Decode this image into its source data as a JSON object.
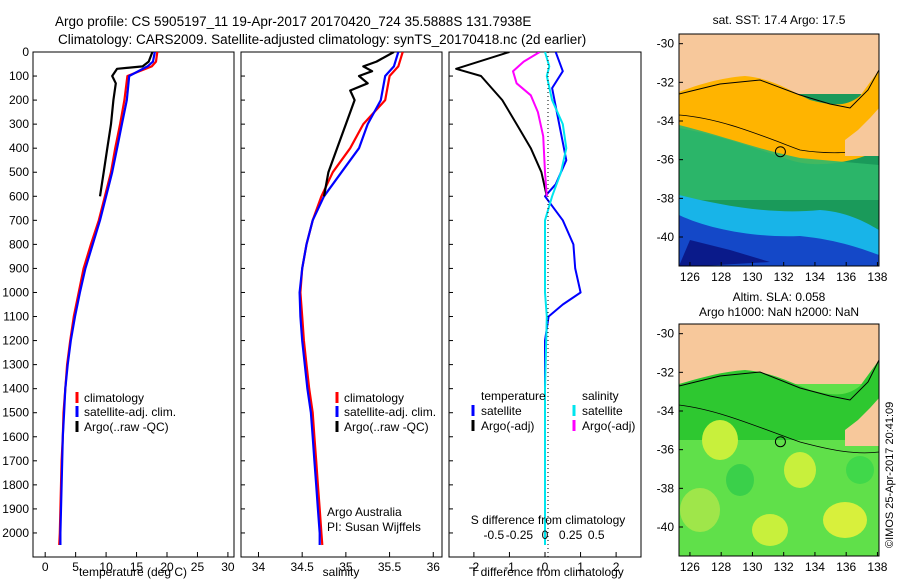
{
  "header": {
    "line1": "Argo profile: CS 5905197_11 19-Apr-2017 20170420_724 35.5888S 131.7938E",
    "line2": "Climatology: CARS2009. Satellite-adjusted climatology: synTS_20170418.nc (2d earlier)"
  },
  "chart_data": [
    {
      "type": "line",
      "id": "temperature",
      "xlabel": "temperature (deg C)",
      "xlim": [
        -2,
        31
      ],
      "ylim": [
        2100,
        0
      ],
      "xticks": [
        "0",
        "5",
        "10",
        "15",
        "20",
        "25",
        "30"
      ],
      "yticks": [
        "0",
        "100",
        "200",
        "300",
        "400",
        "500",
        "600",
        "700",
        "800",
        "900",
        "1000",
        "1100",
        "1200",
        "1300",
        "1400",
        "1500",
        "1600",
        "1700",
        "1800",
        "1900",
        "2000"
      ],
      "legend": [
        "climatology",
        "satellite-adj. clim.",
        "Argo(..raw -QC)"
      ],
      "series": [
        {
          "name": "climatology",
          "color": "#ff0000",
          "points": [
            [
              18.4,
              0
            ],
            [
              18.2,
              40
            ],
            [
              17.5,
              60
            ],
            [
              13.5,
              100
            ],
            [
              13.0,
              200
            ],
            [
              12.3,
              300
            ],
            [
              11.5,
              400
            ],
            [
              10.8,
              500
            ],
            [
              9.8,
              600
            ],
            [
              8.8,
              700
            ],
            [
              7.5,
              800
            ],
            [
              6.3,
              900
            ],
            [
              5.5,
              1000
            ],
            [
              4.7,
              1100
            ],
            [
              4.1,
              1200
            ],
            [
              3.6,
              1300
            ],
            [
              3.3,
              1400
            ],
            [
              3.0,
              1500
            ],
            [
              2.9,
              1600
            ],
            [
              2.7,
              1700
            ],
            [
              2.6,
              1800
            ],
            [
              2.5,
              1900
            ],
            [
              2.4,
              2000
            ],
            [
              2.3,
              2050
            ]
          ]
        },
        {
          "name": "satellite-adj. clim.",
          "color": "#0000ff",
          "points": [
            [
              18.0,
              0
            ],
            [
              17.7,
              40
            ],
            [
              16.8,
              60
            ],
            [
              13.8,
              100
            ],
            [
              13.4,
              200
            ],
            [
              12.6,
              300
            ],
            [
              11.8,
              400
            ],
            [
              11.0,
              500
            ],
            [
              10.0,
              600
            ],
            [
              9.0,
              700
            ],
            [
              7.8,
              800
            ],
            [
              6.6,
              900
            ],
            [
              5.7,
              1000
            ],
            [
              4.9,
              1100
            ],
            [
              4.2,
              1200
            ],
            [
              3.7,
              1300
            ],
            [
              3.3,
              1400
            ],
            [
              3.1,
              1500
            ],
            [
              2.9,
              1600
            ],
            [
              2.8,
              1700
            ],
            [
              2.7,
              1800
            ],
            [
              2.6,
              1900
            ],
            [
              2.5,
              2000
            ],
            [
              2.5,
              2050
            ]
          ]
        },
        {
          "name": "Argo(..raw -QC)",
          "color": "#000000",
          "points": [
            [
              17.6,
              0
            ],
            [
              17.0,
              40
            ],
            [
              16.0,
              60
            ],
            [
              11.8,
              70
            ],
            [
              11.0,
              100
            ],
            [
              11.6,
              130
            ],
            [
              11.2,
              200
            ],
            [
              10.8,
              300
            ],
            [
              10.2,
              400
            ],
            [
              9.6,
              500
            ],
            [
              9.0,
              600
            ]
          ]
        }
      ]
    },
    {
      "type": "line",
      "id": "salinity",
      "xlabel": "salinity",
      "xlim": [
        33.8,
        36.1
      ],
      "ylim": [
        2100,
        0
      ],
      "xticks": [
        "34",
        "34.5",
        "35",
        "35.5",
        "36"
      ],
      "legend": [
        "climatology",
        "satellite-adj. clim.",
        "Argo(..raw -QC)"
      ],
      "annotation": [
        "Argo Australia",
        "PI: Susan Wijffels"
      ],
      "series": [
        {
          "name": "climatology",
          "color": "#ff0000",
          "points": [
            [
              35.65,
              0
            ],
            [
              35.6,
              60
            ],
            [
              35.5,
              100
            ],
            [
              35.45,
              200
            ],
            [
              35.2,
              300
            ],
            [
              35.05,
              400
            ],
            [
              34.85,
              500
            ],
            [
              34.72,
              600
            ],
            [
              34.62,
              700
            ],
            [
              34.55,
              800
            ],
            [
              34.5,
              900
            ],
            [
              34.48,
              1000
            ],
            [
              34.5,
              1100
            ],
            [
              34.52,
              1200
            ],
            [
              34.55,
              1300
            ],
            [
              34.58,
              1400
            ],
            [
              34.62,
              1500
            ],
            [
              34.64,
              1600
            ],
            [
              34.66,
              1700
            ],
            [
              34.68,
              1800
            ],
            [
              34.7,
              1900
            ],
            [
              34.72,
              2000
            ],
            [
              34.73,
              2050
            ]
          ]
        },
        {
          "name": "satellite-adj. clim.",
          "color": "#0000ff",
          "points": [
            [
              35.6,
              0
            ],
            [
              35.55,
              60
            ],
            [
              35.45,
              100
            ],
            [
              35.4,
              200
            ],
            [
              35.25,
              300
            ],
            [
              35.15,
              400
            ],
            [
              34.95,
              500
            ],
            [
              34.75,
              600
            ],
            [
              34.62,
              700
            ],
            [
              34.55,
              800
            ],
            [
              34.5,
              900
            ],
            [
              34.47,
              1000
            ],
            [
              34.48,
              1100
            ],
            [
              34.5,
              1200
            ],
            [
              34.53,
              1300
            ],
            [
              34.56,
              1400
            ],
            [
              34.6,
              1500
            ],
            [
              34.62,
              1600
            ],
            [
              34.64,
              1700
            ],
            [
              34.66,
              1800
            ],
            [
              34.68,
              1900
            ],
            [
              34.7,
              2000
            ],
            [
              34.7,
              2050
            ]
          ]
        },
        {
          "name": "Argo(..raw -QC)",
          "color": "#000000",
          "points": [
            [
              35.55,
              0
            ],
            [
              35.35,
              40
            ],
            [
              35.2,
              60
            ],
            [
              35.3,
              80
            ],
            [
              35.15,
              100
            ],
            [
              35.25,
              130
            ],
            [
              35.05,
              160
            ],
            [
              35.1,
              200
            ],
            [
              35.0,
              300
            ],
            [
              34.9,
              400
            ],
            [
              34.8,
              500
            ],
            [
              34.75,
              600
            ]
          ]
        }
      ]
    },
    {
      "type": "line",
      "id": "difference",
      "xlabel": "T difference from climatology",
      "xlim": [
        -2.7,
        2.7
      ],
      "ylim": [
        2100,
        0
      ],
      "xticks": [
        "-2",
        "-1",
        "0",
        "1",
        "2"
      ],
      "s_axis_label": "S difference from climatology",
      "s_ticks": [
        "-0.5",
        "-0.25",
        "0",
        "0.25",
        "0.5"
      ],
      "legend_temperature": {
        "title": "temperature",
        "items": [
          "satellite",
          "Argo(-adj)"
        ]
      },
      "legend_salinity": {
        "title": "salinity",
        "items": [
          "satellite",
          "Argo(-adj)"
        ]
      },
      "series": [
        {
          "name": "temperature satellite",
          "color": "#0000ff",
          "points": [
            [
              0.3,
              0
            ],
            [
              0.5,
              80
            ],
            [
              0.2,
              150
            ],
            [
              0.4,
              300
            ],
            [
              0.6,
              450
            ],
            [
              0.3,
              550
            ],
            [
              0.0,
              600
            ],
            [
              0.5,
              700
            ],
            [
              0.8,
              800
            ],
            [
              0.85,
              900
            ],
            [
              1.0,
              1000
            ],
            [
              0.5,
              1050
            ],
            [
              0.1,
              1100
            ],
            [
              0.0,
              1200
            ],
            [
              0.0,
              2050
            ]
          ]
        },
        {
          "name": "temperature Argo(-adj)",
          "color": "#000000",
          "points": [
            [
              -1.0,
              0
            ],
            [
              -2.5,
              70
            ],
            [
              -1.8,
              100
            ],
            [
              -1.5,
              150
            ],
            [
              -1.2,
              200
            ],
            [
              -0.8,
              300
            ],
            [
              -0.4,
              400
            ],
            [
              -0.1,
              500
            ],
            [
              0.05,
              600
            ]
          ]
        },
        {
          "name": "salinity satellite",
          "color": "#00e5ee",
          "points": [
            [
              0.0,
              0
            ],
            [
              0.12,
              60
            ],
            [
              0.05,
              100
            ],
            [
              0.2,
              200
            ],
            [
              0.5,
              300
            ],
            [
              0.6,
              400
            ],
            [
              0.45,
              500
            ],
            [
              0.2,
              600
            ],
            [
              0.0,
              700
            ],
            [
              0.0,
              1000
            ],
            [
              0.05,
              1100
            ],
            [
              0.0,
              1400
            ],
            [
              0.0,
              2050
            ]
          ]
        },
        {
          "name": "salinity Argo(-adj)",
          "color": "#ff00ff",
          "points": [
            [
              -0.15,
              0
            ],
            [
              -0.6,
              40
            ],
            [
              -0.9,
              80
            ],
            [
              -0.8,
              130
            ],
            [
              -0.4,
              180
            ],
            [
              -0.2,
              250
            ],
            [
              -0.05,
              350
            ],
            [
              0.0,
              500
            ],
            [
              0.05,
              600
            ]
          ]
        }
      ]
    },
    {
      "type": "heatmap",
      "id": "sst-map",
      "title": "sat. SST: 17.4 Argo: 17.5",
      "xticks": [
        "126",
        "128",
        "130",
        "132",
        "134",
        "136",
        "138"
      ],
      "yticks": [
        "-30",
        "-32",
        "-34",
        "-36",
        "-38",
        "-40"
      ],
      "marker": {
        "lon": 131.79,
        "lat": -35.59
      }
    },
    {
      "type": "heatmap",
      "id": "sla-map",
      "title_lines": [
        "Altim. SLA: 0.058",
        "Argo h1000: NaN h2000: NaN"
      ],
      "xticks": [
        "126",
        "128",
        "130",
        "132",
        "134",
        "136",
        "138"
      ],
      "yticks": [
        "-30",
        "-32",
        "-34",
        "-36",
        "-38",
        "-40"
      ],
      "marker": {
        "lon": 131.79,
        "lat": -35.59
      }
    }
  ],
  "watermark": "©IMOS 25-Apr-2017 20:41:09"
}
